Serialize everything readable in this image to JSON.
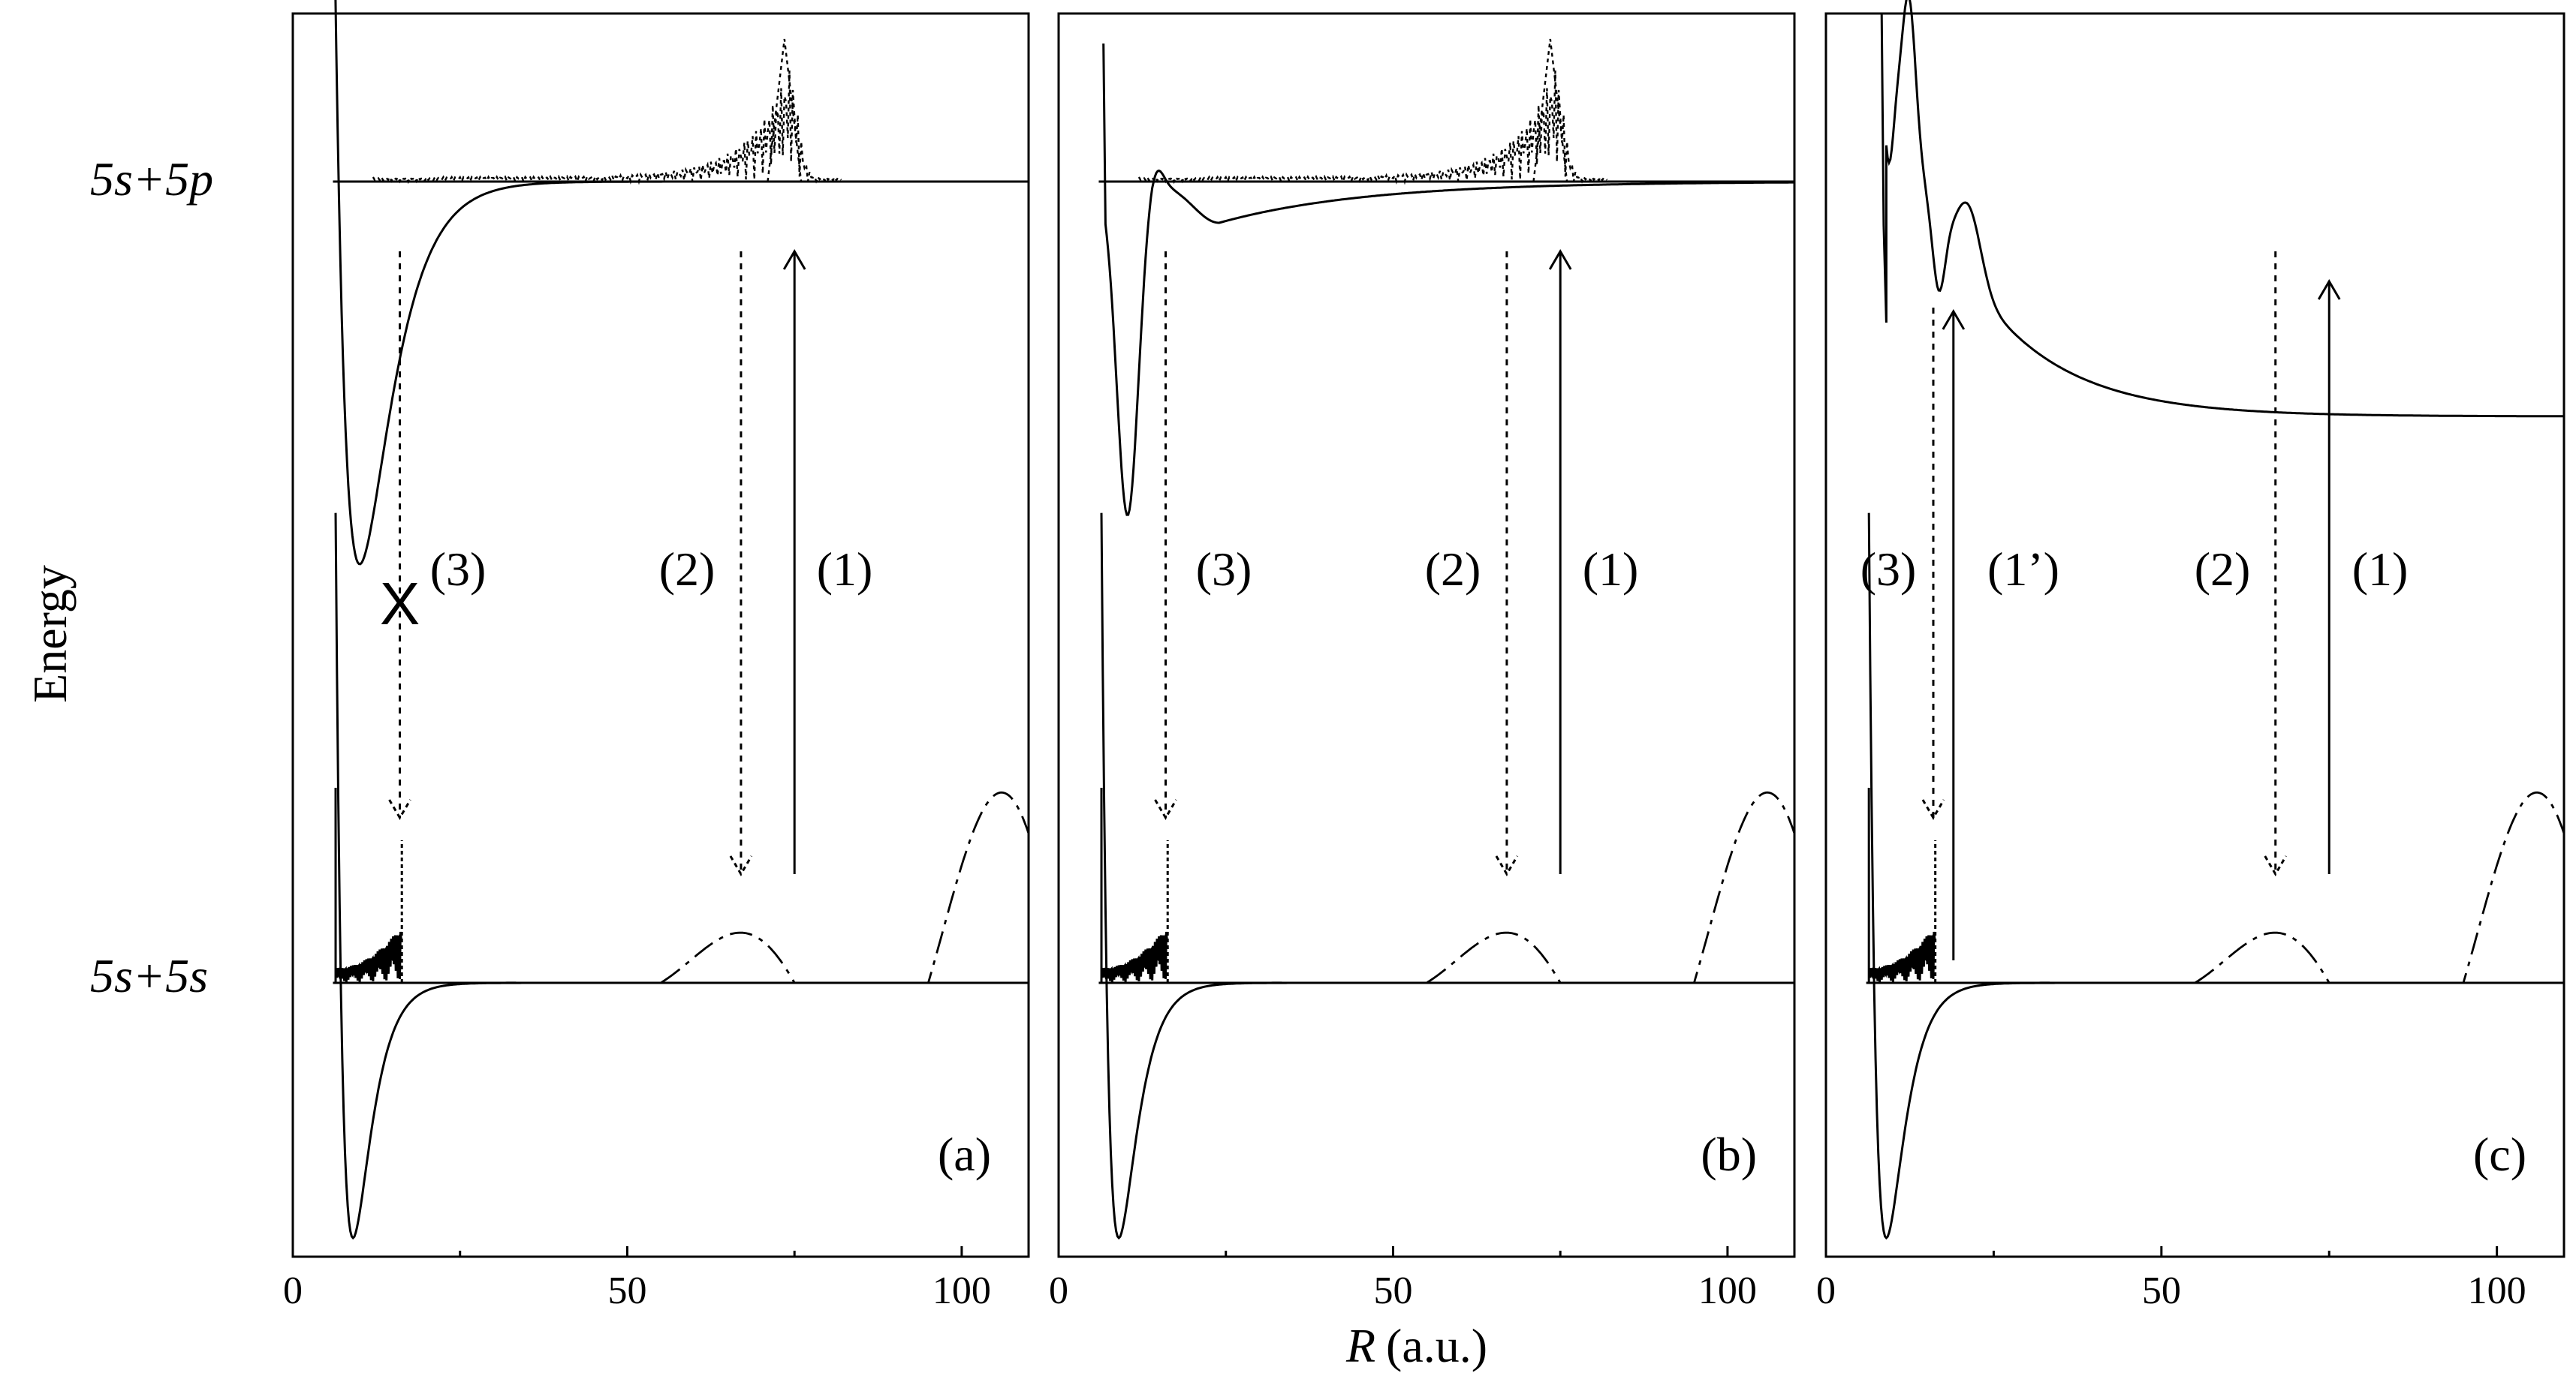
{
  "chart_data": [
    {
      "type": "line",
      "panel_label": "(a)",
      "xlabel": "R (a.u.)",
      "ylabel": "Energy",
      "x_ticks": [
        0,
        50,
        100
      ],
      "xlim": [
        0,
        110
      ],
      "level_labels": [
        "5s+5p",
        "5s+5s"
      ],
      "transition_labels": [
        "(3)",
        "(2)",
        "(1)"
      ],
      "blocked_marker": "X",
      "transitions": [
        {
          "label": "(1)",
          "x": 75,
          "direction": "up",
          "style": "solid"
        },
        {
          "label": "(2)",
          "x": 67,
          "direction": "down",
          "style": "dotted"
        },
        {
          "label": "(3)",
          "x": 16,
          "direction": "down",
          "style": "dotted"
        }
      ],
      "excited_potential": "deep attractive well near R≈10 a.u., asymptote 5s+5p"
    },
    {
      "type": "line",
      "panel_label": "(b)",
      "xlabel": "R (a.u.)",
      "x_ticks": [
        0,
        50,
        100
      ],
      "xlim": [
        0,
        110
      ],
      "transition_labels": [
        "(3)",
        "(2)",
        "(1)"
      ],
      "transitions": [
        {
          "label": "(1)",
          "x": 75,
          "direction": "up",
          "style": "solid"
        },
        {
          "label": "(2)",
          "x": 67,
          "direction": "down",
          "style": "dotted"
        },
        {
          "label": "(3)",
          "x": 16,
          "direction": "down",
          "style": "dotted"
        }
      ],
      "excited_potential": "well near R≈10 a.u. with barrier ≈14 a.u. and shallow well ≈24 a.u."
    },
    {
      "type": "line",
      "panel_label": "(c)",
      "xlabel": "R (a.u.)",
      "x_ticks": [
        0,
        50,
        100
      ],
      "xlim": [
        0,
        110
      ],
      "transition_labels": [
        "(3)",
        "(1’)",
        "(2)",
        "(1)"
      ],
      "transitions": [
        {
          "label": "(1)",
          "x": 75,
          "direction": "up",
          "style": "solid"
        },
        {
          "label": "(1’)",
          "x": 19,
          "direction": "up",
          "style": "solid"
        },
        {
          "label": "(2)",
          "x": 67,
          "direction": "down",
          "style": "dotted"
        },
        {
          "label": "(3)",
          "x": 16,
          "direction": "down",
          "style": "dotted"
        }
      ],
      "excited_potential": "repulsive curve with humps near R≈12 and ≈22 a.u., lower asymptote"
    }
  ],
  "axis_title_R": "R",
  "axis_title_units": "(a.u.)"
}
